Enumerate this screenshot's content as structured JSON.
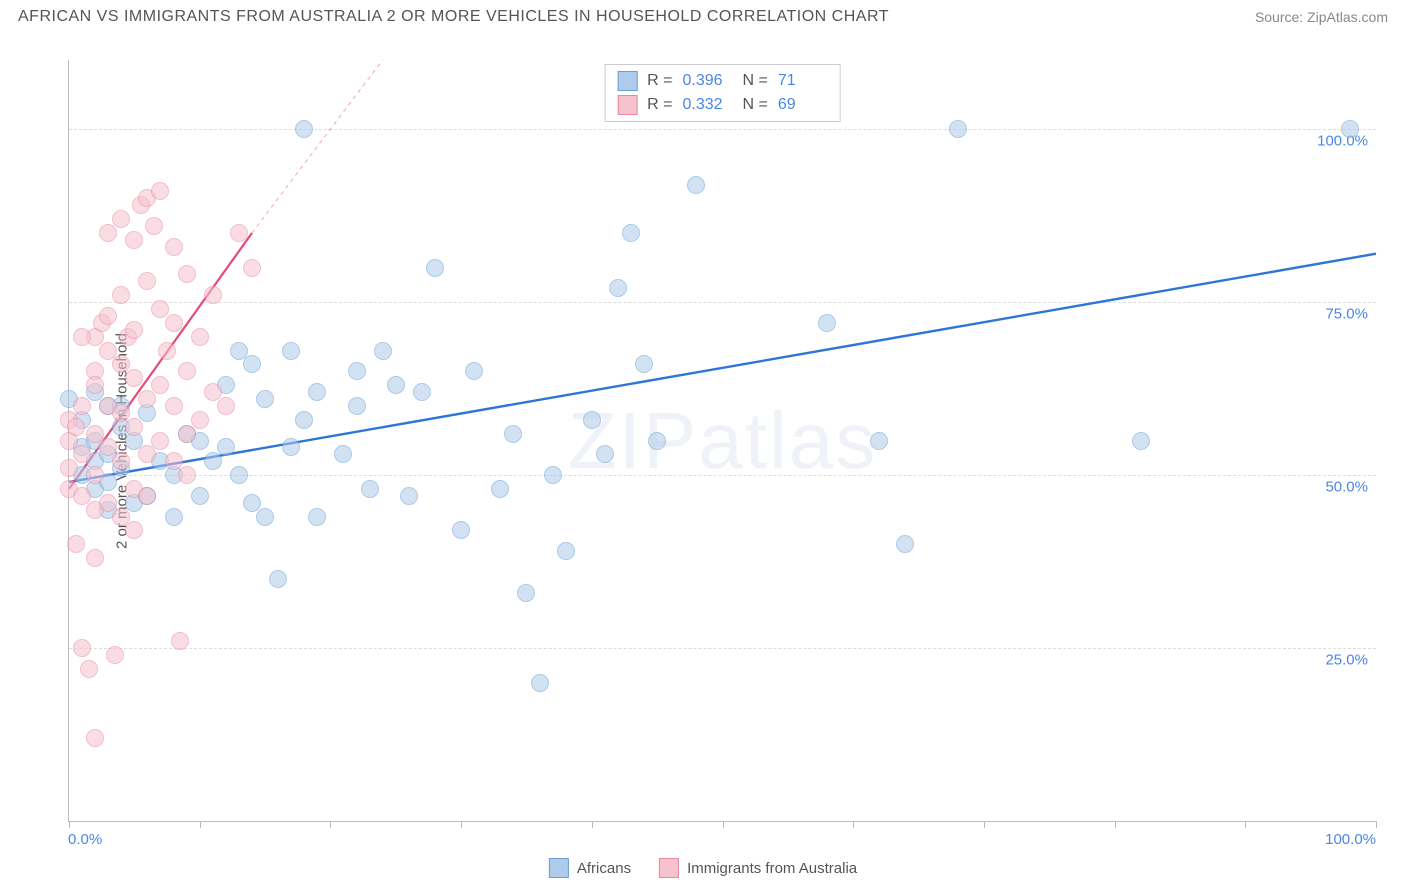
{
  "title": "AFRICAN VS IMMIGRANTS FROM AUSTRALIA 2 OR MORE VEHICLES IN HOUSEHOLD CORRELATION CHART",
  "source": "Source: ZipAtlas.com",
  "yaxis_label": "2 or more Vehicles in Household",
  "watermark": "ZIPatlas",
  "chart": {
    "type": "scatter",
    "xlim": [
      0,
      100
    ],
    "ylim": [
      0,
      110
    ],
    "x_axis_label_min": "0.0%",
    "x_axis_label_max": "100.0%",
    "y_ticks": [
      {
        "value": 25,
        "label": "25.0%"
      },
      {
        "value": 50,
        "label": "50.0%"
      },
      {
        "value": 75,
        "label": "75.0%"
      },
      {
        "value": 100,
        "label": "100.0%"
      }
    ],
    "x_ticks_minor": [
      0,
      10,
      20,
      30,
      40,
      50,
      60,
      70,
      80,
      90,
      100
    ],
    "grid_color": "#dddddd",
    "axis_color": "#bbbbbb",
    "background_color": "#ffffff",
    "point_radius": 9,
    "point_opacity": 0.55,
    "series": [
      {
        "id": "africans",
        "label": "Africans",
        "color_fill": "#aecbeb",
        "color_stroke": "#6a9fd4",
        "trend": {
          "x1": 0,
          "y1": 49,
          "x2": 100,
          "y2": 82,
          "color": "#2e75d6",
          "width": 2.4,
          "dash_tail": false
        },
        "stats": {
          "R": "0.396",
          "N": "71"
        },
        "points": [
          [
            0,
            61
          ],
          [
            1,
            50
          ],
          [
            1,
            54
          ],
          [
            1,
            58
          ],
          [
            2,
            62
          ],
          [
            2,
            48
          ],
          [
            2,
            52
          ],
          [
            2,
            55
          ],
          [
            3,
            53
          ],
          [
            3,
            49
          ],
          [
            3,
            60
          ],
          [
            4,
            51
          ],
          [
            4,
            57
          ],
          [
            5,
            46
          ],
          [
            5,
            55
          ],
          [
            6,
            47
          ],
          [
            7,
            52
          ],
          [
            8,
            44
          ],
          [
            9,
            56
          ],
          [
            10,
            55
          ],
          [
            10,
            47
          ],
          [
            12,
            63
          ],
          [
            12,
            54
          ],
          [
            13,
            68
          ],
          [
            14,
            46
          ],
          [
            14,
            66
          ],
          [
            15,
            61
          ],
          [
            16,
            35
          ],
          [
            17,
            68
          ],
          [
            18,
            58
          ],
          [
            18,
            100
          ],
          [
            19,
            44
          ],
          [
            21,
            53
          ],
          [
            22,
            60
          ],
          [
            22,
            65
          ],
          [
            23,
            48
          ],
          [
            24,
            68
          ],
          [
            25,
            63
          ],
          [
            26,
            47
          ],
          [
            27,
            62
          ],
          [
            28,
            80
          ],
          [
            30,
            42
          ],
          [
            31,
            65
          ],
          [
            33,
            48
          ],
          [
            34,
            56
          ],
          [
            35,
            33
          ],
          [
            36,
            20
          ],
          [
            37,
            50
          ],
          [
            38,
            39
          ],
          [
            40,
            58
          ],
          [
            41,
            53
          ],
          [
            42,
            77
          ],
          [
            43,
            85
          ],
          [
            44,
            66
          ],
          [
            45,
            55
          ],
          [
            48,
            92
          ],
          [
            58,
            72
          ],
          [
            62,
            55
          ],
          [
            64,
            40
          ],
          [
            68,
            100
          ],
          [
            82,
            55
          ],
          [
            98,
            100
          ],
          [
            3,
            45
          ],
          [
            4,
            60
          ],
          [
            6,
            59
          ],
          [
            8,
            50
          ],
          [
            11,
            52
          ],
          [
            13,
            50
          ],
          [
            15,
            44
          ],
          [
            17,
            54
          ],
          [
            19,
            62
          ]
        ]
      },
      {
        "id": "immigrants_australia",
        "label": "Immigrants from Australia",
        "color_fill": "#f6c2ce",
        "color_stroke": "#e98aa2",
        "trend": {
          "x1": 0,
          "y1": 48,
          "x2": 14,
          "y2": 85,
          "color": "#e74a79",
          "width": 2.2,
          "dash_tail": true,
          "dash_x2": 24,
          "dash_y2": 110
        },
        "stats": {
          "R": "0.332",
          "N": "69"
        },
        "points": [
          [
            0,
            48
          ],
          [
            0,
            51
          ],
          [
            0,
            55
          ],
          [
            0,
            58
          ],
          [
            0.5,
            40
          ],
          [
            1,
            47
          ],
          [
            1,
            53
          ],
          [
            1,
            60
          ],
          [
            1,
            25
          ],
          [
            1.5,
            22
          ],
          [
            2,
            45
          ],
          [
            2,
            50
          ],
          [
            2,
            56
          ],
          [
            2,
            65
          ],
          [
            2,
            70
          ],
          [
            2,
            12
          ],
          [
            2.5,
            72
          ],
          [
            3,
            54
          ],
          [
            3,
            60
          ],
          [
            3,
            68
          ],
          [
            3,
            73
          ],
          [
            3,
            85
          ],
          [
            3.5,
            24
          ],
          [
            4,
            52
          ],
          [
            4,
            59
          ],
          [
            4,
            66
          ],
          [
            4,
            76
          ],
          [
            4,
            87
          ],
          [
            4.5,
            70
          ],
          [
            5,
            48
          ],
          [
            5,
            57
          ],
          [
            5,
            64
          ],
          [
            5,
            71
          ],
          [
            5,
            84
          ],
          [
            5.5,
            89
          ],
          [
            6,
            53
          ],
          [
            6,
            61
          ],
          [
            6,
            78
          ],
          [
            6,
            90
          ],
          [
            6.5,
            86
          ],
          [
            7,
            55
          ],
          [
            7,
            63
          ],
          [
            7,
            74
          ],
          [
            7,
            91
          ],
          [
            7.5,
            68
          ],
          [
            8,
            52
          ],
          [
            8,
            60
          ],
          [
            8,
            72
          ],
          [
            8,
            83
          ],
          [
            8.5,
            26
          ],
          [
            9,
            56
          ],
          [
            9,
            65
          ],
          [
            9,
            79
          ],
          [
            10,
            58
          ],
          [
            10,
            70
          ],
          [
            11,
            62
          ],
          [
            11,
            76
          ],
          [
            12,
            60
          ],
          [
            13,
            85
          ],
          [
            14,
            80
          ],
          [
            2,
            38
          ],
          [
            3,
            46
          ],
          [
            4,
            44
          ],
          [
            5,
            42
          ],
          [
            6,
            47
          ],
          [
            9,
            50
          ],
          [
            1,
            70
          ],
          [
            2,
            63
          ],
          [
            0.5,
            57
          ]
        ]
      }
    ]
  },
  "legend_bottom": [
    {
      "label": "Africans",
      "fill": "#aecbeb",
      "stroke": "#6a9fd4"
    },
    {
      "label": "Immigrants from Australia",
      "fill": "#f6c2ce",
      "stroke": "#e98aa2"
    }
  ],
  "stats_labels": {
    "R": "R =",
    "N": "N ="
  }
}
